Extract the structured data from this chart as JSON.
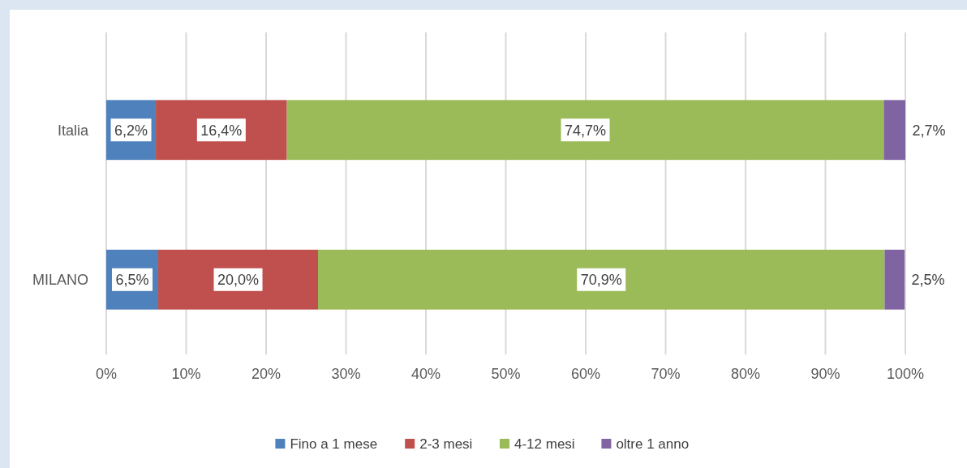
{
  "chart_data": {
    "type": "bar",
    "orientation": "horizontal",
    "stacked": true,
    "categories": [
      "Italia",
      "MILANO"
    ],
    "series": [
      {
        "name": "Fino a 1 mese",
        "color": "#4f81bd",
        "values": [
          6.2,
          6.5
        ],
        "value_labels": [
          "6,2%",
          "6,5%"
        ]
      },
      {
        "name": "2-3 mesi",
        "color": "#c0504d",
        "values": [
          16.4,
          20.0
        ],
        "value_labels": [
          "16,4%",
          "20,0%"
        ]
      },
      {
        "name": "4-12 mesi",
        "color": "#9bbb59",
        "values": [
          74.7,
          70.9
        ],
        "value_labels": [
          "74,7%",
          "70,9%"
        ]
      },
      {
        "name": "oltre 1 anno",
        "color": "#8064a2",
        "values": [
          2.7,
          2.5
        ],
        "value_labels": [
          "2,7%",
          "2,5%"
        ]
      }
    ],
    "xlim": [
      0,
      100
    ],
    "xticks": [
      {
        "value": 0,
        "label": "0%"
      },
      {
        "value": 10,
        "label": "10%"
      },
      {
        "value": 20,
        "label": "20%"
      },
      {
        "value": 30,
        "label": "30%"
      },
      {
        "value": 40,
        "label": "40%"
      },
      {
        "value": 50,
        "label": "50%"
      },
      {
        "value": 60,
        "label": "60%"
      },
      {
        "value": 70,
        "label": "70%"
      },
      {
        "value": 80,
        "label": "80%"
      },
      {
        "value": 90,
        "label": "90%"
      },
      {
        "value": 100,
        "label": "100%"
      }
    ],
    "grid": "x",
    "legend": "bottom"
  }
}
